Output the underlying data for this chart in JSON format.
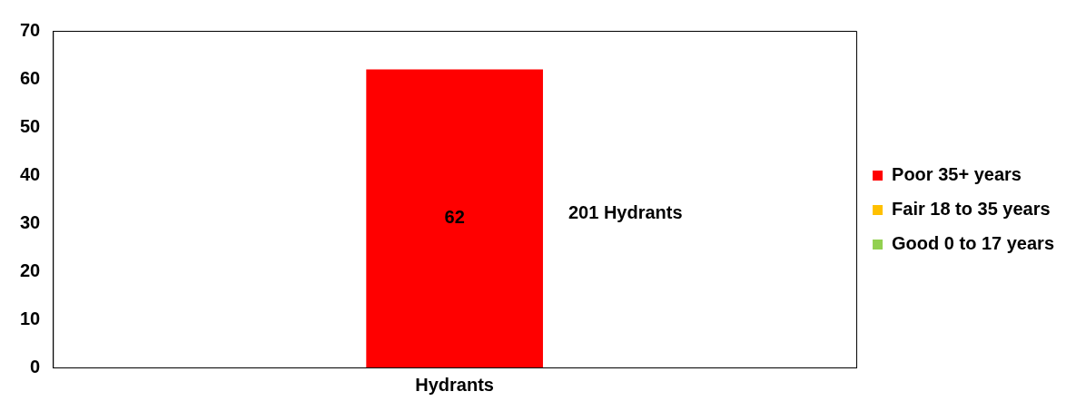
{
  "chart_data": {
    "type": "bar",
    "categories": [
      "Hydrants"
    ],
    "stacked": true,
    "series": [
      {
        "name": "Poor 35+ years",
        "color": "#ff0000",
        "values": [
          62
        ]
      },
      {
        "name": "Fair 18 to 35 years",
        "color": "#ffc000",
        "values": [
          null
        ]
      },
      {
        "name": "Good 0 to 17 years",
        "color": "#92d050",
        "values": [
          null
        ]
      }
    ],
    "ylim": [
      0,
      70
    ],
    "yticks": [
      0,
      10,
      20,
      30,
      40,
      50,
      60,
      70
    ],
    "grid": false,
    "legend": "right",
    "data_labels": true,
    "annotations": [
      "201 Hydrants"
    ]
  }
}
